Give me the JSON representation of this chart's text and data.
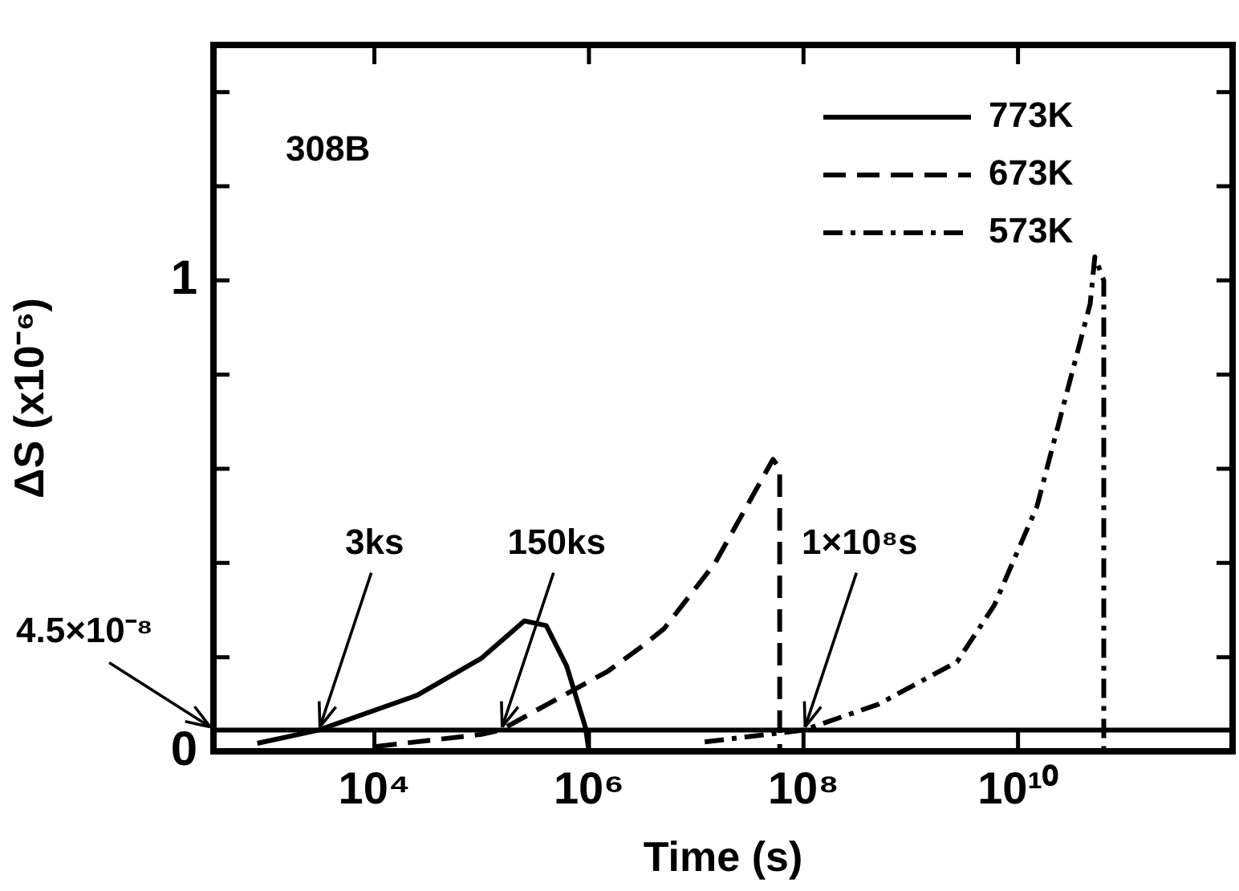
{
  "chart_data": {
    "type": "line",
    "xlabel": "Time (s)",
    "ylabel": "ΔS (x10⁻⁶)",
    "log": "x",
    "xlim": [
      316,
      1000000000000.0
    ],
    "xticks": [
      {
        "value": 10000,
        "label": "10⁴"
      },
      {
        "value": 1000000,
        "label": "10⁶"
      },
      {
        "value": 100000000,
        "label": "10⁸"
      },
      {
        "value": 10000000000,
        "label": "10¹⁰"
      }
    ],
    "ylim": [
      0,
      1.5
    ],
    "yticks": [
      0,
      {
        "value": 0.2,
        "label": null
      },
      {
        "value": 0.4,
        "label": null
      },
      {
        "value": 0.6,
        "label": null
      },
      {
        "value": 0.8,
        "label": null
      },
      1,
      {
        "value": 1.2,
        "label": null
      },
      {
        "value": 1.4,
        "label": null
      }
    ],
    "grid": false,
    "legend": "top right",
    "marker": "none",
    "series": [
      {
        "name": "773K",
        "color": "#000000",
        "line_style": "solid",
        "x": [
          810,
          3000,
          25000,
          100000,
          250000,
          400000,
          620000,
          930000,
          1000000
        ],
        "values": [
          0.017,
          0.045,
          0.119,
          0.198,
          0.277,
          0.267,
          0.181,
          0.05,
          0
        ]
      },
      {
        "name": "673K",
        "color": "#000000",
        "line_style": "dashed",
        "x": [
          10000,
          100000,
          150000,
          300000,
          1500000,
          3000000,
          5000000,
          15000000,
          35000000,
          52000000,
          60000000,
          60000000
        ],
        "values": [
          0.01,
          0.036,
          0.045,
          0.083,
          0.17,
          0.22,
          0.26,
          0.4,
          0.55,
          0.62,
          0.6,
          0
        ]
      },
      {
        "name": "573K",
        "color": "#000000",
        "line_style": "dashdot",
        "x": [
          12000000,
          100000000,
          500000000,
          2700000000,
          6000000000,
          15000000000,
          47000000000,
          52000000000,
          63000000000,
          63000000000
        ],
        "values": [
          0.02,
          0.045,
          0.1,
          0.19,
          0.31,
          0.52,
          0.95,
          1.05,
          1.0,
          0
        ]
      }
    ],
    "ref_lines": [
      {
        "axis": "y",
        "value": 0.045,
        "label": "4.5×10⁻⁸",
        "color": "#000000",
        "line_style": "solid"
      }
    ],
    "annotations": [
      "308B",
      {
        "text": "3ks",
        "x": 3000,
        "y": 0.045
      },
      {
        "text": "150ks",
        "x": 150000,
        "y": 0.045
      },
      {
        "text": "1×10⁸s",
        "x": 100000000,
        "y": 0.045
      }
    ]
  }
}
